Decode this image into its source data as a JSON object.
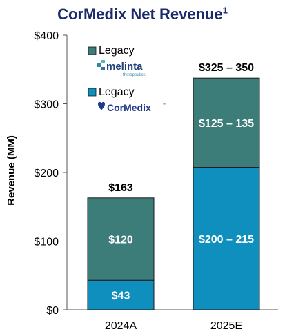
{
  "chart_data": {
    "type": "bar",
    "stacked": true,
    "title": "CorMedix Net Revenue",
    "title_footnote": "1",
    "ylabel": "Revenue (MM)",
    "xlabel": "",
    "ylim": [
      0,
      400
    ],
    "yticks": [
      0,
      100,
      200,
      300,
      400
    ],
    "ytick_labels": [
      "$0",
      "$100",
      "$200",
      "$300",
      "$400"
    ],
    "categories": [
      "2024A",
      "2025E"
    ],
    "totals": [
      "$163",
      "$325 – 350"
    ],
    "total_values": [
      163,
      337.5
    ],
    "series": [
      {
        "name": "Legacy",
        "company": "CorMedix",
        "color": "#0f8fbd",
        "values": [
          43,
          207.5
        ],
        "labels": [
          "$43",
          "$200 – 215"
        ]
      },
      {
        "name": "Legacy",
        "company": "melinta therapeutics",
        "color": "#3c7c79",
        "values": [
          120,
          130
        ],
        "labels": [
          "$120",
          "$125 – 135"
        ]
      }
    ],
    "legend_position": "top-left",
    "grid": false
  },
  "legend": {
    "melinta_name": "melinta",
    "melinta_sub": "therapeutics",
    "cormedix_name": "CorMedix",
    "trademark": "™"
  }
}
